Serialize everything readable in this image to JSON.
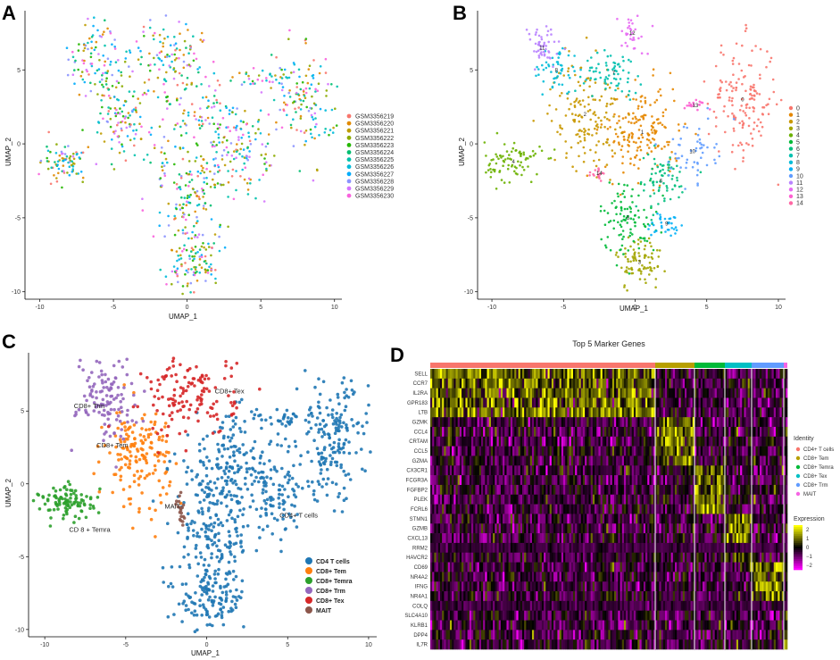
{
  "panels": {
    "A": "A",
    "B": "B",
    "C": "C",
    "D": "D"
  },
  "chart_data": [
    {
      "type": "scatter",
      "panel": "A",
      "title": "",
      "xlabel": "UMAP_1",
      "ylabel": "UMAP_2",
      "xlim": [
        -11,
        10.5
      ],
      "ylim": [
        -10.5,
        9
      ],
      "xticks": [
        -10,
        -5,
        0,
        5,
        10
      ],
      "yticks": [
        -10,
        -5,
        0,
        5
      ],
      "legend_position": "right",
      "series": [
        {
          "name": "GSM3356219",
          "color": "#F8766D"
        },
        {
          "name": "GSM3356220",
          "color": "#E18A00"
        },
        {
          "name": "GSM3356221",
          "color": "#BE9C00"
        },
        {
          "name": "GSM3356222",
          "color": "#8CAB00"
        },
        {
          "name": "GSM3356223",
          "color": "#24B700"
        },
        {
          "name": "GSM3356224",
          "color": "#00BE70"
        },
        {
          "name": "GSM3356225",
          "color": "#00C1AB"
        },
        {
          "name": "GSM3356226",
          "color": "#00BBDA"
        },
        {
          "name": "GSM3356227",
          "color": "#00ACFC"
        },
        {
          "name": "GSM3356228",
          "color": "#8B93FF"
        },
        {
          "name": "GSM3356229",
          "color": "#D575FE"
        },
        {
          "name": "GSM3356230",
          "color": "#F962DD"
        }
      ]
    },
    {
      "type": "scatter",
      "panel": "B",
      "title": "",
      "xlabel": "UMAP_1",
      "ylabel": "UMAP_2",
      "xlim": [
        -11,
        10.5
      ],
      "ylim": [
        -10.5,
        9
      ],
      "xticks": [
        -10,
        -5,
        0,
        5,
        10
      ],
      "yticks": [
        -10,
        -5,
        0,
        5
      ],
      "legend_position": "right",
      "series": [
        {
          "name": "0",
          "color": "#F8766D",
          "center": [
            7.5,
            3.0
          ],
          "spread": [
            1.2,
            2.0
          ],
          "weight": 9
        },
        {
          "name": "1",
          "color": "#E58700",
          "center": [
            0.5,
            0.8
          ],
          "spread": [
            1.3,
            1.6
          ],
          "weight": 10
        },
        {
          "name": "2",
          "color": "#C99800",
          "center": [
            -3.5,
            2.0
          ],
          "spread": [
            1.2,
            1.8
          ],
          "weight": 9
        },
        {
          "name": "3",
          "color": "#A3A500",
          "center": [
            0.3,
            -8.0
          ],
          "spread": [
            0.8,
            1.0
          ],
          "weight": 5
        },
        {
          "name": "4",
          "color": "#6BB100",
          "center": [
            -8.5,
            -1.2
          ],
          "spread": [
            1.0,
            0.7
          ],
          "weight": 5
        },
        {
          "name": "5",
          "color": "#00BA38",
          "center": [
            -0.5,
            -5.0
          ],
          "spread": [
            1.0,
            1.3
          ],
          "weight": 6
        },
        {
          "name": "6",
          "color": "#00BF7D",
          "center": [
            1.8,
            -2.5
          ],
          "spread": [
            1.0,
            1.0
          ],
          "weight": 4
        },
        {
          "name": "7",
          "color": "#00C0AF",
          "center": [
            -1.5,
            4.8
          ],
          "spread": [
            1.0,
            0.7
          ],
          "weight": 4
        },
        {
          "name": "8",
          "color": "#00BCD8",
          "center": [
            -5.5,
            5.0
          ],
          "spread": [
            0.8,
            0.8
          ],
          "weight": 3
        },
        {
          "name": "9",
          "color": "#00B0F6",
          "center": [
            2.2,
            -5.4
          ],
          "spread": [
            0.7,
            0.5
          ],
          "weight": 2
        },
        {
          "name": "10",
          "color": "#619CFF",
          "center": [
            4.0,
            -0.5
          ],
          "spread": [
            0.8,
            1.0
          ],
          "weight": 3
        },
        {
          "name": "11",
          "color": "#B983FF",
          "center": [
            -6.5,
            6.5
          ],
          "spread": [
            0.7,
            0.8
          ],
          "weight": 3
        },
        {
          "name": "12",
          "color": "#E76BF3",
          "center": [
            -0.2,
            7.5
          ],
          "spread": [
            0.6,
            0.8
          ],
          "weight": 2
        },
        {
          "name": "13",
          "color": "#FD61D1",
          "center": [
            4.2,
            2.6
          ],
          "spread": [
            0.4,
            0.2
          ],
          "weight": 1
        },
        {
          "name": "14",
          "color": "#FF67A4",
          "center": [
            -2.5,
            -2.0
          ],
          "spread": [
            0.3,
            0.2
          ],
          "weight": 1
        }
      ]
    },
    {
      "type": "scatter",
      "panel": "C",
      "title": "",
      "xlabel": "UMAP_1",
      "ylabel": "UMAP_2",
      "xlim": [
        -11,
        10.5
      ],
      "ylim": [
        -10.5,
        9
      ],
      "xticks": [
        -10,
        -5,
        0,
        5,
        10
      ],
      "yticks": [
        -10,
        -5,
        0,
        5
      ],
      "legend_position": "bottom-right",
      "annotations": [
        {
          "text": "CD8+ Trm",
          "x": -8.2,
          "y": 5.2
        },
        {
          "text": "CD8+ Tex",
          "x": 0.5,
          "y": 6.2
        },
        {
          "text": "CD8+ Tem",
          "x": -6.8,
          "y": 2.5
        },
        {
          "text": "CD 8 + Temra",
          "x": -8.5,
          "y": -3.3
        },
        {
          "text": "MAIT",
          "x": -2.6,
          "y": -1.7
        },
        {
          "text": "CD4+ T cells",
          "x": 4.5,
          "y": -2.3
        }
      ],
      "series": [
        {
          "name": "CD4 T cells",
          "color": "#1F77B4"
        },
        {
          "name": "CD8+ Tem",
          "color": "#FF7F0E"
        },
        {
          "name": "CD8+ Temra",
          "color": "#2CA02C"
        },
        {
          "name": "CD8+ Trm",
          "color": "#9467BD"
        },
        {
          "name": "CD8+ Tex",
          "color": "#D62728"
        },
        {
          "name": "MAIT",
          "color": "#8C564B"
        }
      ]
    },
    {
      "type": "heatmap",
      "panel": "D",
      "title": "Top 5 Marker Genes",
      "genes": [
        "SELL",
        "CCR7",
        "IL2RA",
        "GPR183",
        "LTB",
        "GZMK",
        "CCL4",
        "CRTAM",
        "CCL5",
        "GZMA",
        "CX3CR1",
        "FCGR3A",
        "FGFBP2",
        "PLEK",
        "FCRL6",
        "STMN1",
        "GZMB",
        "CXCL13",
        "RRM2",
        "HAVCR2",
        "CD69",
        "NR4A2",
        "IFNG",
        "NR4A1",
        "COLQ",
        "SLC4A10",
        "KLRB1",
        "DPP4",
        "IL7R"
      ],
      "groups": [
        {
          "name": "CD4+ T cells",
          "color": "#F8766D",
          "fraction": 0.63,
          "high_genes": [
            0,
            4
          ]
        },
        {
          "name": "CD8+ Tem",
          "color": "#B79F00",
          "fraction": 0.11,
          "high_genes": [
            5,
            9
          ]
        },
        {
          "name": "CD8+ Temra",
          "color": "#00BA38",
          "fraction": 0.085,
          "high_genes": [
            10,
            14
          ]
        },
        {
          "name": "CD8+ Tex",
          "color": "#00BFC4",
          "fraction": 0.075,
          "high_genes": [
            15,
            19
          ]
        },
        {
          "name": "CD8+ Trm",
          "color": "#619CFF",
          "fraction": 0.09,
          "high_genes": [
            20,
            23
          ]
        },
        {
          "name": "MAIT",
          "color": "#F564E3",
          "fraction": 0.01,
          "high_genes": [
            24,
            28
          ]
        }
      ],
      "identity_label": "Identity",
      "expression_label": "Expression",
      "scale_ticks": [
        "2",
        "1",
        "0",
        "−1",
        "−2"
      ],
      "scale_range": [
        -2.5,
        2.5
      ],
      "color_low": "#FF00FF",
      "color_mid": "#000000",
      "color_high": "#FFFF00"
    }
  ]
}
